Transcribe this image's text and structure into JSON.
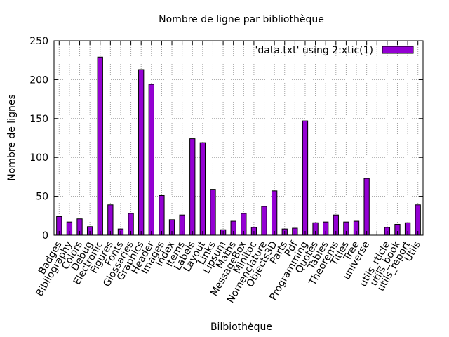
{
  "chart_data": {
    "type": "bar",
    "title": "Nombre de ligne par bibliothèque",
    "xlabel": "Bilbiothèque",
    "ylabel": "Nombre de lignes",
    "ylim": [
      0,
      250
    ],
    "yticks": [
      "0",
      "50",
      "100",
      "150",
      "200",
      "250"
    ],
    "grid": true,
    "legend_position": "top-right",
    "bar_color": "#9400d3",
    "series": [
      {
        "name": "'data.txt' using 2:xtic(1)",
        "values": [
          24,
          17,
          21,
          11,
          229,
          39,
          8,
          28,
          213,
          194,
          51,
          20,
          26,
          124,
          119,
          59,
          7,
          18,
          28,
          10,
          37,
          57,
          8,
          9,
          147,
          16,
          17,
          26,
          17,
          18,
          73,
          0,
          10,
          14,
          16,
          39
        ]
      }
    ],
    "categories": [
      "Badges",
      "Bibliography",
      "Colors",
      "Debug",
      "Electronic",
      "Figures",
      "Fonts",
      "Glossaries",
      "Graphics",
      "Header",
      "Images",
      "Index",
      "Items",
      "Labels",
      "Layout",
      "Links",
      "Lipsum",
      "Maths",
      "MessageBox",
      "Minitoc",
      "Nomenclature",
      "Objects3D",
      "Parts",
      "Pdf",
      "Programming",
      "Quotes",
      "Tables",
      "Theorems",
      "Titles",
      "Tree",
      "universe",
      "",
      "utils_rticle",
      "utils_book",
      "utils_report",
      "Utils"
    ]
  }
}
